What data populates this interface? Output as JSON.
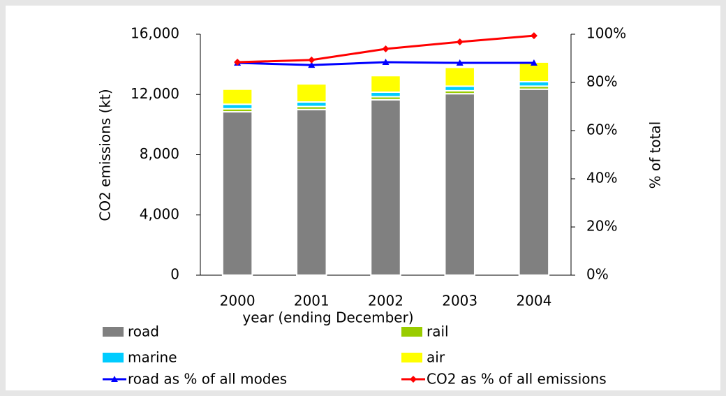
{
  "chart_data": {
    "type": "bar",
    "categories": [
      "2000",
      "2001",
      "2002",
      "2003",
      "2004"
    ],
    "x_label": "year (ending December)",
    "y_label": "CO2 emissions (kt)",
    "y2_label": "% of total",
    "ylim": [
      0,
      16000
    ],
    "yticks": [
      0,
      {
        "value": 4000,
        "label": "4,000"
      },
      {
        "value": 8000,
        "label": "8,000"
      },
      {
        "value": 12000,
        "label": "12,000"
      },
      {
        "value": 16000,
        "label": "16,000"
      }
    ],
    "y2lim": [
      0,
      100
    ],
    "y2ticks": [
      {
        "value": 0,
        "label": "0%"
      },
      {
        "value": 20,
        "label": "20%"
      },
      {
        "value": 40,
        "label": "40%"
      },
      {
        "value": 60,
        "label": "60%"
      },
      {
        "value": 80,
        "label": "80%"
      },
      {
        "value": 100,
        "label": "100%"
      }
    ],
    "stacked": true,
    "legend": "bottom",
    "series": [
      {
        "name": "road",
        "color": "#808080",
        "values": [
          10850,
          11000,
          11650,
          12050,
          12350
        ]
      },
      {
        "name": "rail",
        "color": "#99cc00",
        "values": [
          200,
          200,
          200,
          200,
          200
        ]
      },
      {
        "name": "marine",
        "color": "#00ccff",
        "values": [
          300,
          300,
          300,
          300,
          300
        ]
      },
      {
        "name": "air",
        "color": "#ffff00",
        "values": [
          1000,
          1200,
          1100,
          1250,
          1300
        ]
      },
      {
        "name": "road as % of all modes",
        "color": "#0000ff",
        "type": "line",
        "marker": "triangle",
        "axis": "y2",
        "values": [
          88.1,
          87.2,
          88.4,
          88.1,
          88.1
        ]
      },
      {
        "name": "CO2 as % of all emissions",
        "color": "#ff0000",
        "type": "line",
        "marker": "diamond",
        "axis": "y2",
        "values": [
          88.4,
          89.3,
          93.9,
          96.8,
          99.4
        ]
      }
    ]
  }
}
